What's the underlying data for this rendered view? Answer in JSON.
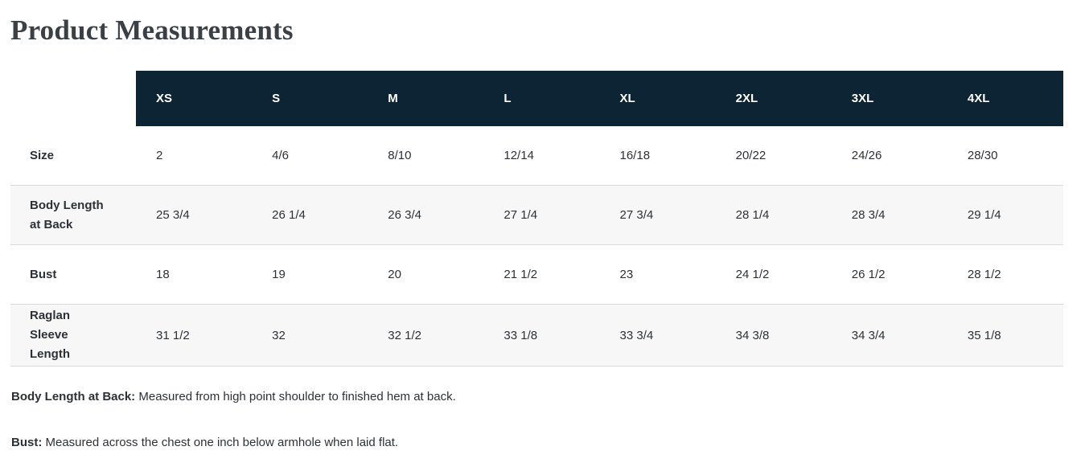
{
  "page": {
    "title": "Product Measurements"
  },
  "table": {
    "columns": [
      "XS",
      "S",
      "M",
      "L",
      "XL",
      "2XL",
      "3XL",
      "4XL"
    ],
    "rows": [
      {
        "label": "Size",
        "values": [
          "2",
          "4/6",
          "8/10",
          "12/14",
          "16/18",
          "20/22",
          "24/26",
          "28/30"
        ]
      },
      {
        "label": "Body Length at Back",
        "values": [
          "25 3/4",
          "26 1/4",
          "26 3/4",
          "27 1/4",
          "27 3/4",
          "28 1/4",
          "28 3/4",
          "29 1/4"
        ]
      },
      {
        "label": "Bust",
        "values": [
          "18",
          "19",
          "20",
          "21 1/2",
          "23",
          "24 1/2",
          "26 1/2",
          "28 1/2"
        ]
      },
      {
        "label": "Raglan Sleeve Length",
        "values": [
          "31 1/2",
          "32",
          "32 1/2",
          "33 1/8",
          "33 3/4",
          "34 3/8",
          "34 3/4",
          "35 1/8"
        ]
      }
    ]
  },
  "notes": [
    {
      "term": "Body Length at Back:",
      "description": "Measured from high point shoulder to finished hem at back."
    },
    {
      "term": "Bust:",
      "description": "Measured across the chest one inch below armhole when laid flat."
    }
  ],
  "colors": {
    "header_bg": "#0c2433",
    "header_text": "#ffffff",
    "stripe_bg": "#f7f7f7",
    "border": "#d9d9d9",
    "text": "#2d3136",
    "title_text": "#3a4046"
  }
}
